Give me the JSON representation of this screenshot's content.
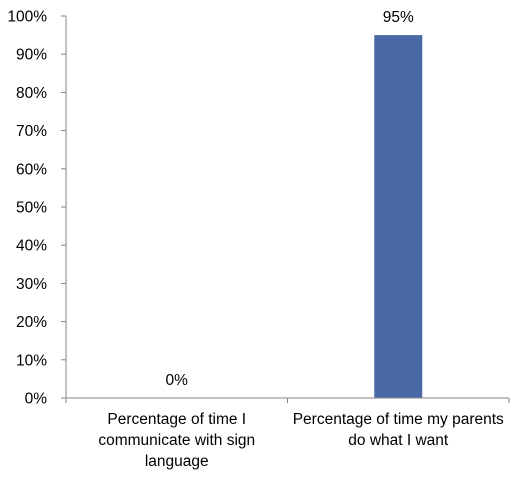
{
  "chart_data": {
    "type": "bar",
    "categories": [
      "Percentage of time I communicate with sign language",
      "Percentage of time my parents do what I want"
    ],
    "values": [
      0,
      95
    ],
    "data_labels": [
      "0%",
      "95%"
    ],
    "ylim": [
      0,
      100
    ],
    "yticks": [
      "0%",
      "10%",
      "20%",
      "30%",
      "40%",
      "50%",
      "60%",
      "70%",
      "80%",
      "90%",
      "100%"
    ],
    "grid": false,
    "legend": "none",
    "bar_color": "#4a6aa5"
  }
}
